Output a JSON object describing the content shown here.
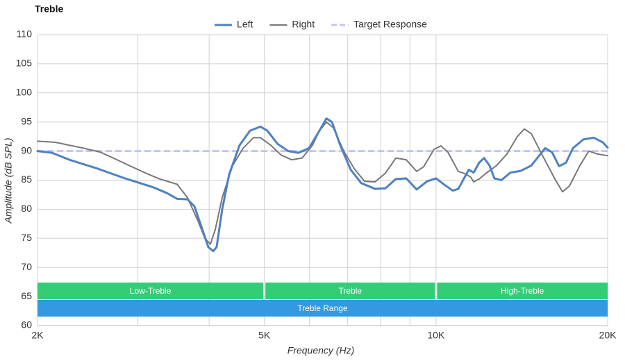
{
  "chart_data": {
    "type": "line",
    "title": "Treble",
    "xlabel": "Frequency (Hz)",
    "ylabel": "Amplitude (dB SPL)",
    "xscale": "log",
    "xlim": [
      2000,
      20000
    ],
    "xticks": [
      {
        "value": 2000,
        "label": "2K"
      },
      {
        "value": 5000,
        "label": "5K"
      },
      {
        "value": 10000,
        "label": "10K"
      },
      {
        "value": 20000,
        "label": "20K"
      }
    ],
    "xminor": [
      3000,
      4000,
      6000,
      7000,
      8000,
      9000
    ],
    "ylim": [
      60,
      110
    ],
    "yticks": [
      60,
      65,
      70,
      75,
      80,
      85,
      90,
      95,
      100,
      105,
      110
    ],
    "grid": true,
    "legend": "top",
    "series": [
      {
        "name": "Left",
        "color": "#4f81c1",
        "width": 3,
        "x": [
          2000,
          2121,
          2275,
          2546,
          2848,
          3186,
          3370,
          3514,
          3665,
          3770,
          3877,
          3987,
          4066,
          4123,
          4217,
          4337,
          4523,
          4718,
          4921,
          5060,
          5278,
          5505,
          5741,
          5988,
          6245,
          6423,
          6569,
          6793,
          7085,
          7390,
          7816,
          8152,
          8503,
          8868,
          9249,
          9646,
          10004,
          10347,
          10701,
          10943,
          11413,
          11640,
          11904,
          12140,
          12415,
          12661,
          13022,
          13506,
          14086,
          14692,
          15110,
          15540,
          15981,
          16436,
          16904,
          17384,
          18133,
          18911,
          19610,
          20000
        ],
        "values": [
          90,
          89.7,
          88.5,
          87,
          85.3,
          83.8,
          82.8,
          81.8,
          81.7,
          80.5,
          77,
          73.5,
          72.8,
          73.5,
          80,
          86,
          91,
          93.5,
          94.2,
          93.5,
          91.2,
          90,
          89.7,
          90.5,
          93.5,
          95.6,
          95,
          91,
          86.8,
          84.5,
          83.5,
          83.6,
          85.2,
          85.3,
          83.4,
          84.8,
          85.3,
          84.2,
          83.2,
          83.5,
          86.8,
          86.3,
          88,
          88.8,
          87.5,
          85.3,
          85,
          86.3,
          86.6,
          87.5,
          89,
          90.5,
          89.8,
          87.4,
          88,
          90.5,
          92,
          92.3,
          91.5,
          90.6
        ]
      },
      {
        "name": "Right",
        "color": "#777777",
        "width": 2,
        "x": [
          2000,
          2151,
          2275,
          2407,
          2581,
          2730,
          2929,
          3098,
          3276,
          3514,
          3665,
          3823,
          3932,
          4021,
          4100,
          4217,
          4398,
          4588,
          4784,
          4921,
          5132,
          5353,
          5583,
          5823,
          6072,
          6245,
          6423,
          6606,
          6889,
          7185,
          7493,
          7816,
          8152,
          8503,
          8868,
          9249,
          9512,
          9920,
          10203,
          10493,
          10943,
          11254,
          11510,
          11640,
          11904,
          12244,
          12769,
          13318,
          13890,
          14285,
          14692,
          15323,
          16206,
          16666,
          17141,
          17876,
          18542,
          19175,
          20000
        ],
        "values": [
          91.7,
          91.5,
          91,
          90.5,
          89.8,
          88.7,
          87.3,
          86.2,
          85.2,
          84.3,
          82,
          78,
          75,
          74,
          76.5,
          82,
          87.5,
          90.5,
          92.3,
          92.3,
          91,
          89.3,
          88.5,
          88.8,
          91,
          93.5,
          95,
          94,
          90,
          87,
          84.8,
          84.7,
          86.2,
          88.8,
          88.5,
          86.5,
          87.3,
          90.3,
          90.9,
          89.8,
          86.5,
          86.1,
          85.5,
          84.7,
          85.2,
          86.2,
          87.5,
          89.5,
          92.5,
          93.8,
          93,
          89.5,
          85,
          83,
          84,
          87.5,
          90,
          89.5,
          89.2
        ]
      },
      {
        "name": "Target Response",
        "color": "#c4c4f4",
        "width": 3,
        "dashed": true,
        "x": [
          2000,
          20000
        ],
        "values": [
          90,
          90
        ]
      }
    ],
    "bands": [
      {
        "label": "Low-Treble",
        "start": 2000,
        "end": 5000,
        "color": "#33cc77",
        "row": 0
      },
      {
        "label": "Treble",
        "start": 5000,
        "end": 10000,
        "color": "#33cc77",
        "row": 0
      },
      {
        "label": "High-Treble",
        "start": 10000,
        "end": 20000,
        "color": "#33cc77",
        "row": 0
      },
      {
        "label": "Treble Range",
        "start": 2000,
        "end": 20000,
        "color": "#3399e0",
        "row": 1
      }
    ]
  }
}
